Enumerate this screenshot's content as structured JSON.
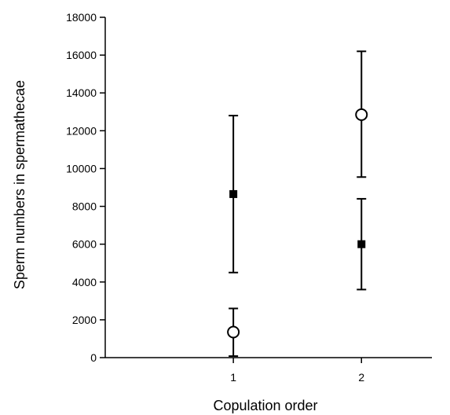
{
  "chart_data": {
    "type": "scatter",
    "title": "",
    "xlabel": "Copulation order",
    "ylabel": "Sperm numbers in spermathecae",
    "x_ticks": [
      "1",
      "2"
    ],
    "xlim": [
      0,
      2.55
    ],
    "ylim": [
      0,
      18000
    ],
    "y_ticks": [
      0,
      2000,
      4000,
      6000,
      8000,
      10000,
      12000,
      14000,
      16000,
      18000
    ],
    "grid": false,
    "legend": "none",
    "series": [
      {
        "marker": "filled-square",
        "points": [
          {
            "x": 1,
            "y": 8650,
            "err_low": 4500,
            "err_high": 12800
          },
          {
            "x": 2,
            "y": 6000,
            "err_low": 3600,
            "err_high": 8400
          }
        ]
      },
      {
        "marker": "open-circle",
        "points": [
          {
            "x": 1,
            "y": 1350,
            "err_low": 80,
            "err_high": 2600
          },
          {
            "x": 2,
            "y": 12850,
            "err_low": 9550,
            "err_high": 16200
          }
        ]
      }
    ]
  }
}
